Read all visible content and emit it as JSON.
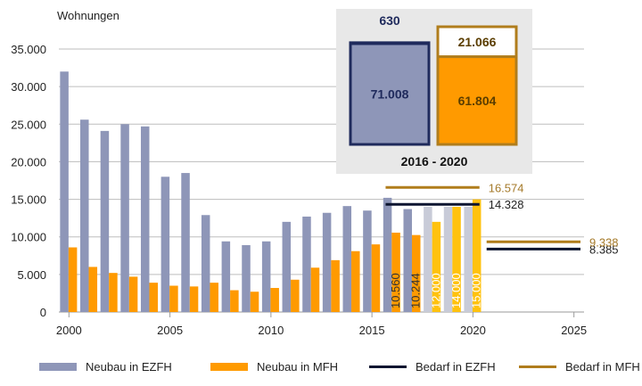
{
  "colors": {
    "ezfh": "#8e96b8",
    "mfh": "#ff9a00",
    "ezfh_light": "#c8cbd8",
    "mfh_light": "#ffc20e",
    "bedarf_ezfh": "#0d1530",
    "bedarf_mfh": "#b07d1c",
    "grid": "#bdbdbd",
    "inset_bg": "#e8e8e8",
    "inset_ezfh_fill": "#8e96b8",
    "inset_ezfh_border": "#1f2a5c",
    "inset_mfh_fill": "#ff9a00",
    "inset_mfh_border": "#b07d1c",
    "bedarf_mfh_label": "#a57a2a"
  },
  "chart_data": {
    "type": "bar",
    "ylabel": "Wohnungen",
    "ylim": [
      0,
      35000
    ],
    "xlim": [
      2000,
      2025
    ],
    "ytick_labels": [
      "0",
      "5.000",
      "10.000",
      "15.000",
      "20.000",
      "25.000",
      "30.000",
      "35.000"
    ],
    "ytick_values": [
      0,
      5000,
      10000,
      15000,
      20000,
      25000,
      30000,
      35000
    ],
    "xtick_labels": [
      "2000",
      "2005",
      "2010",
      "2015",
      "2020",
      "2025"
    ],
    "xtick_values": [
      2000,
      2005,
      2010,
      2015,
      2020,
      2025
    ],
    "grid": "horizontal",
    "years": [
      2000,
      2001,
      2002,
      2003,
      2004,
      2005,
      2006,
      2007,
      2008,
      2009,
      2010,
      2011,
      2012,
      2013,
      2014,
      2015,
      2016,
      2017,
      2018,
      2019,
      2020
    ],
    "series": [
      {
        "name": "Neubau in EZFH",
        "values": [
          32000,
          25600,
          24100,
          25000,
          24700,
          18000,
          18500,
          12900,
          9400,
          8900,
          9400,
          12000,
          12700,
          13200,
          14100,
          13500,
          15200,
          13700,
          14000,
          14000,
          14000
        ],
        "projected_from": 2018
      },
      {
        "name": "Neubau in MFH",
        "values": [
          8600,
          6000,
          5200,
          4700,
          3900,
          3500,
          3400,
          3900,
          2900,
          2700,
          3200,
          4300,
          5900,
          6900,
          8100,
          9000,
          10560,
          10244,
          12000,
          14000,
          15000
        ],
        "projected_from": 2018
      }
    ],
    "bar_labels": [
      {
        "series": "Neubau in MFH",
        "year": 2016,
        "text": "10.560"
      },
      {
        "series": "Neubau in MFH",
        "year": 2017,
        "text": "10.244"
      },
      {
        "series": "Neubau in MFH",
        "year": 2018,
        "text": "12.000"
      },
      {
        "series": "Neubau in MFH",
        "year": 2019,
        "text": "14.000"
      },
      {
        "series": "Neubau in MFH",
        "year": 2020,
        "text": "15.000"
      }
    ],
    "bedarf": [
      {
        "name": "Bedarf in EZFH",
        "from": 2016,
        "to": 2020,
        "value": 14328,
        "label": "14.328"
      },
      {
        "name": "Bedarf in MFH",
        "from": 2016,
        "to": 2020,
        "value": 16574,
        "label": "16.574"
      },
      {
        "name": "Bedarf in EZFH",
        "from": 2021,
        "to": 2025,
        "value": 8385,
        "label": "8.385"
      },
      {
        "name": "Bedarf in MFH",
        "from": 2021,
        "to": 2025,
        "value": 9338,
        "label": "9.338"
      }
    ],
    "inset": {
      "title": "2016  - 2020",
      "ezfh": {
        "bar_value": 71008,
        "bar_label": "71.008",
        "gap_value": 630,
        "gap_label": "630"
      },
      "mfh": {
        "bar_value": 61804,
        "bar_label": "61.804",
        "gap_value": 21066,
        "gap_label": "21.066"
      }
    },
    "legend": {
      "placement": "bottom",
      "items": [
        {
          "label": "Neubau in EZFH",
          "kind": "bar",
          "color_key": "ezfh"
        },
        {
          "label": "Neubau in MFH",
          "kind": "bar",
          "color_key": "mfh"
        },
        {
          "label": "Bedarf in EZFH",
          "kind": "line",
          "color_key": "bedarf_ezfh"
        },
        {
          "label": "Bedarf in MFH",
          "kind": "line",
          "color_key": "bedarf_mfh"
        }
      ]
    }
  }
}
